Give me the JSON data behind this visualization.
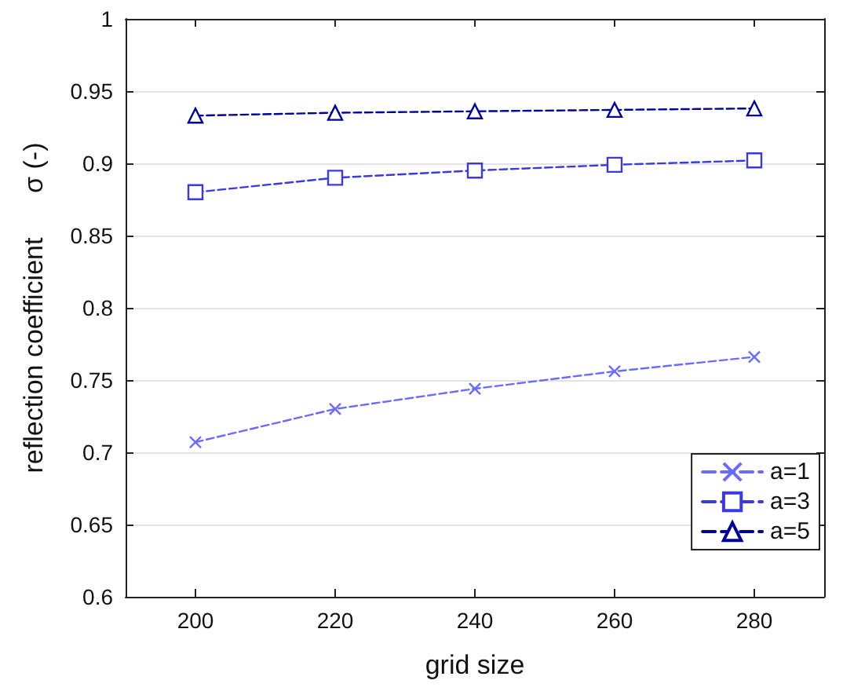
{
  "chart_data": {
    "type": "line",
    "xlabel": "grid size",
    "ylabel": "reflection coefficient      σ (-)",
    "x": [
      200,
      220,
      240,
      260,
      280
    ],
    "series": [
      {
        "name": "a=1",
        "color": "#6b6bff",
        "marker": "cross",
        "values": [
          0.707,
          0.73,
          0.744,
          0.756,
          0.766
        ]
      },
      {
        "name": "a=3",
        "color": "#3a3ae0",
        "marker": "square",
        "values": [
          0.88,
          0.89,
          0.895,
          0.899,
          0.902
        ]
      },
      {
        "name": "a=5",
        "color": "#00009a",
        "marker": "triangle",
        "values": [
          0.933,
          0.935,
          0.936,
          0.937,
          0.938
        ]
      }
    ],
    "xlim": [
      190,
      290
    ],
    "xticks": [
      200,
      220,
      240,
      260,
      280
    ],
    "ylim": [
      0.6,
      1
    ],
    "yticks": [
      0.6,
      0.65,
      0.7,
      0.75,
      0.8,
      0.85,
      0.9,
      0.95,
      1
    ],
    "grid": "y",
    "legend": "bottom right",
    "line_style": "dashed"
  }
}
